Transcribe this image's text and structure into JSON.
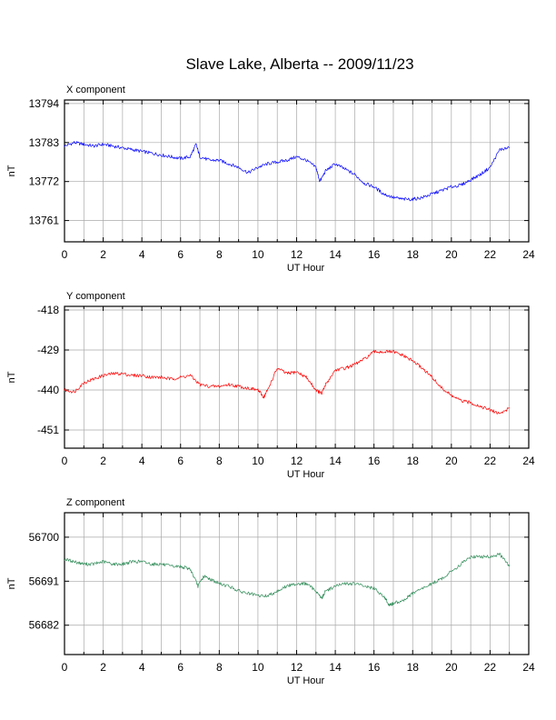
{
  "title": "Slave Lake, Alberta -- 2009/11/23",
  "chart_data": [
    {
      "type": "line",
      "panel_label": "X component",
      "xlabel": "UT Hour",
      "ylabel": "nT",
      "xlim": [
        0,
        24
      ],
      "ylim": [
        13755,
        13795
      ],
      "xticks": [
        0,
        2,
        4,
        6,
        8,
        10,
        12,
        14,
        16,
        18,
        20,
        22,
        24
      ],
      "yticks": [
        13761,
        13772,
        13783,
        13794
      ],
      "grid": true,
      "series": [
        {
          "color": "#0000ff",
          "x": [
            0,
            0.5,
            1,
            1.5,
            2,
            2.5,
            3,
            3.5,
            4,
            4.5,
            5,
            5.5,
            6,
            6.5,
            6.8,
            7,
            7.5,
            8,
            8.5,
            9,
            9.5,
            10,
            10.5,
            11,
            11.5,
            12,
            12.5,
            13,
            13.2,
            13.5,
            14,
            14.5,
            15,
            15.5,
            16,
            16.5,
            17,
            17.5,
            18,
            18.5,
            19,
            19.5,
            20,
            20.5,
            21,
            21.5,
            22,
            22.5,
            23
          ],
          "values": [
            13782,
            13783,
            13782.5,
            13782,
            13782.5,
            13782,
            13781.5,
            13781,
            13780.5,
            13780,
            13779.5,
            13779,
            13778.5,
            13779,
            13782.5,
            13779,
            13778,
            13778,
            13777,
            13776,
            13774.5,
            13776,
            13777,
            13777.5,
            13778,
            13779,
            13778,
            13776,
            13772,
            13775,
            13777,
            13775.5,
            13774,
            13771.5,
            13770.5,
            13768.5,
            13767.5,
            13767,
            13767,
            13767.5,
            13768.5,
            13769.5,
            13770.5,
            13771,
            13772.5,
            13774,
            13776,
            13781,
            13781.5
          ]
        }
      ]
    },
    {
      "type": "line",
      "panel_label": "Y component",
      "xlabel": "UT Hour",
      "ylabel": "nT",
      "xlim": [
        0,
        24
      ],
      "ylim": [
        -456,
        -417
      ],
      "xticks": [
        0,
        2,
        4,
        6,
        8,
        10,
        12,
        14,
        16,
        18,
        20,
        22,
        24
      ],
      "yticks": [
        -418,
        -429,
        -440,
        -451
      ],
      "grid": true,
      "series": [
        {
          "color": "#ff0000",
          "x": [
            0,
            0.5,
            1,
            1.5,
            2,
            2.5,
            3,
            3.5,
            4,
            4.5,
            5,
            5.5,
            6,
            6.5,
            7,
            7.5,
            8,
            8.5,
            9,
            9.5,
            10,
            10.3,
            10.5,
            11,
            11.5,
            12,
            12.5,
            13,
            13.3,
            13.5,
            14,
            14.5,
            15,
            15.5,
            16,
            16.5,
            17,
            17.5,
            18,
            18.5,
            19,
            19.5,
            20,
            20.5,
            21,
            21.5,
            22,
            22.5,
            23
          ],
          "values": [
            -440,
            -440.5,
            -438,
            -437,
            -436,
            -435.5,
            -435.5,
            -436,
            -436,
            -436.5,
            -436.5,
            -437,
            -436.5,
            -436,
            -438.5,
            -439,
            -439,
            -438.5,
            -439,
            -439.5,
            -440,
            -442,
            -440,
            -434,
            -435.5,
            -435,
            -436.5,
            -440,
            -441,
            -438.5,
            -434.5,
            -434,
            -433,
            -431.5,
            -429.5,
            -429.5,
            -429.5,
            -430.5,
            -432,
            -434,
            -436.5,
            -439.5,
            -441.5,
            -443,
            -443.5,
            -444.5,
            -445.5,
            -446.5,
            -445
          ]
        }
      ]
    },
    {
      "type": "line",
      "panel_label": "Z component",
      "xlabel": "UT Hour",
      "ylabel": "nT",
      "xlim": [
        0,
        24
      ],
      "ylim": [
        56676,
        56705
      ],
      "xticks": [
        0,
        2,
        4,
        6,
        8,
        10,
        12,
        14,
        16,
        18,
        20,
        22,
        24
      ],
      "yticks": [
        56682,
        56691,
        56700
      ],
      "grid": true,
      "series": [
        {
          "color": "#2e8b57",
          "x": [
            0,
            0.5,
            1,
            1.5,
            2,
            2.5,
            3,
            3.5,
            4,
            4.5,
            5,
            5.5,
            6,
            6.5,
            6.9,
            7.2,
            7.5,
            8,
            8.5,
            9,
            9.5,
            10,
            10.5,
            11,
            11.5,
            12,
            12.5,
            13,
            13.3,
            13.5,
            14,
            14.5,
            15,
            15.5,
            16,
            16.5,
            16.8,
            17,
            17.5,
            18,
            18.5,
            19,
            19.5,
            20,
            20.5,
            21,
            21.5,
            22,
            22.5,
            23
          ],
          "values": [
            56695.5,
            56695,
            56694.5,
            56694.5,
            56695,
            56694.5,
            56694.5,
            56695,
            56695,
            56694.5,
            56694.5,
            56694,
            56694,
            56693.5,
            56690,
            56692,
            56691.5,
            56690.5,
            56690,
            56689,
            56688.5,
            56688,
            56688,
            56689,
            56690,
            56690.5,
            56690.5,
            56689,
            56687.5,
            56689,
            56690,
            56690.5,
            56690.5,
            56690,
            56689.5,
            56688,
            56686,
            56686.5,
            56687,
            56688.5,
            56689.5,
            56690.5,
            56691.5,
            56693,
            56694.5,
            56696,
            56696,
            56696,
            56696.5,
            56694
          ]
        }
      ]
    }
  ]
}
